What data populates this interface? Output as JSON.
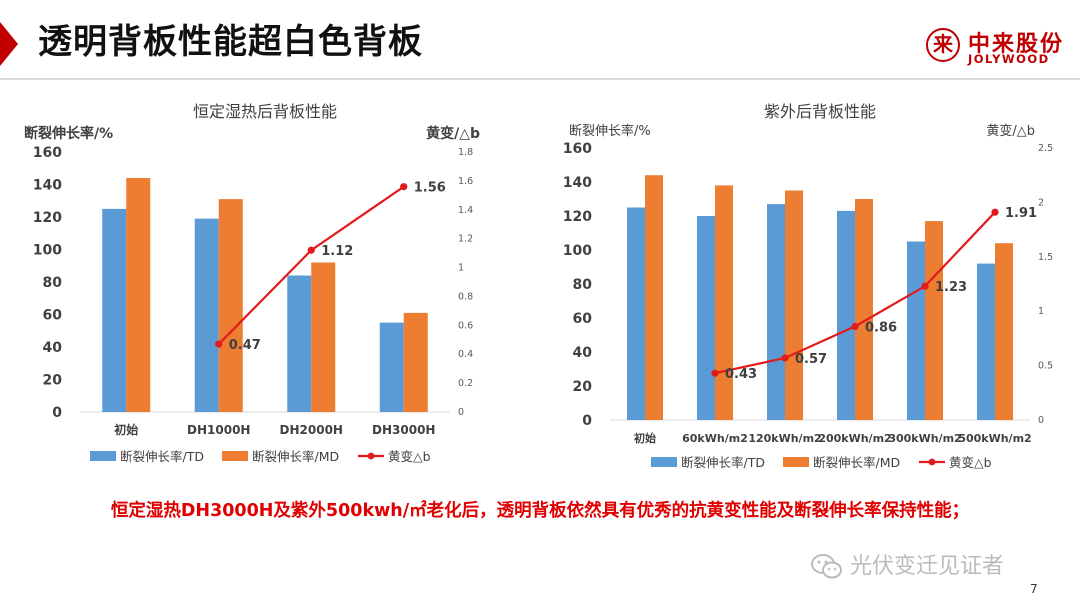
{
  "slide": {
    "title": "透明背板性能超白色背板",
    "logo_cn": "中来股份",
    "logo_en": "JOLYWOOD",
    "logo_mark": "来",
    "conclusion": "恒定湿热DH3000H及紫外500kwh/㎡老化后，透明背板依然具有优秀的抗黄变性能及断裂伸长率保持性能；",
    "watermark": "光伏变迁见证者",
    "page_number": "7",
    "colors": {
      "accent": "#c00000",
      "td": "#5b9bd5",
      "md": "#ed7d31",
      "yellow_line": "#e31a1c"
    }
  },
  "chart_data": [
    {
      "type": "bar",
      "title": "恒定湿热后背板性能",
      "ylabel": "断裂伸长率/%",
      "y2label": "黄变/△b",
      "categories": [
        "初始",
        "DH1000H",
        "DH2000H",
        "DH3000H"
      ],
      "ylim": [
        0,
        160
      ],
      "yticks": [
        0,
        20,
        40,
        60,
        80,
        100,
        120,
        140,
        160
      ],
      "y2lim": [
        0,
        1.8
      ],
      "y2ticks": [
        "0",
        "0.2",
        "0.4",
        "0.6",
        "0.8",
        "1",
        "1.2",
        "1.4",
        "1.6",
        "1.8"
      ],
      "series": [
        {
          "name": "断裂伸长率/TD",
          "kind": "bar",
          "values": [
            125,
            119,
            84,
            55
          ]
        },
        {
          "name": "断裂伸长率/MD",
          "kind": "bar",
          "values": [
            144,
            131,
            92,
            61
          ]
        },
        {
          "name": "黄变△b",
          "kind": "line",
          "axis": "right",
          "values": [
            null,
            0.47,
            1.12,
            1.56
          ],
          "labels": [
            null,
            "0.47",
            "1.12",
            "1.56"
          ]
        }
      ],
      "legend_position": "bottom"
    },
    {
      "type": "bar",
      "title": "紫外后背板性能",
      "ylabel": "断裂伸长率/%",
      "y2label": "黄变/△b",
      "categories": [
        "初始",
        "60kWh/m2",
        "120kWh/m2",
        "200kWh/m2",
        "300kWh/m2",
        "500kWh/m2"
      ],
      "ylim": [
        0,
        160
      ],
      "yticks": [
        0,
        20,
        40,
        60,
        80,
        100,
        120,
        140,
        160
      ],
      "y2lim": [
        0,
        2.5
      ],
      "y2ticks": [
        "0",
        "0.5",
        "1",
        "1.5",
        "2",
        "2.5"
      ],
      "series": [
        {
          "name": "断裂伸长率/TD",
          "kind": "bar",
          "values": [
            125,
            120,
            127,
            123,
            105,
            92
          ]
        },
        {
          "name": "断裂伸长率/MD",
          "kind": "bar",
          "values": [
            144,
            138,
            135,
            130,
            117,
            104
          ]
        },
        {
          "name": "黄变△b",
          "kind": "line",
          "axis": "right",
          "values": [
            null,
            0.43,
            0.57,
            0.86,
            1.23,
            1.91
          ],
          "labels": [
            null,
            "0.43",
            "0.57",
            "0.86",
            "1.23",
            "1.91"
          ]
        }
      ],
      "legend_position": "bottom"
    }
  ]
}
